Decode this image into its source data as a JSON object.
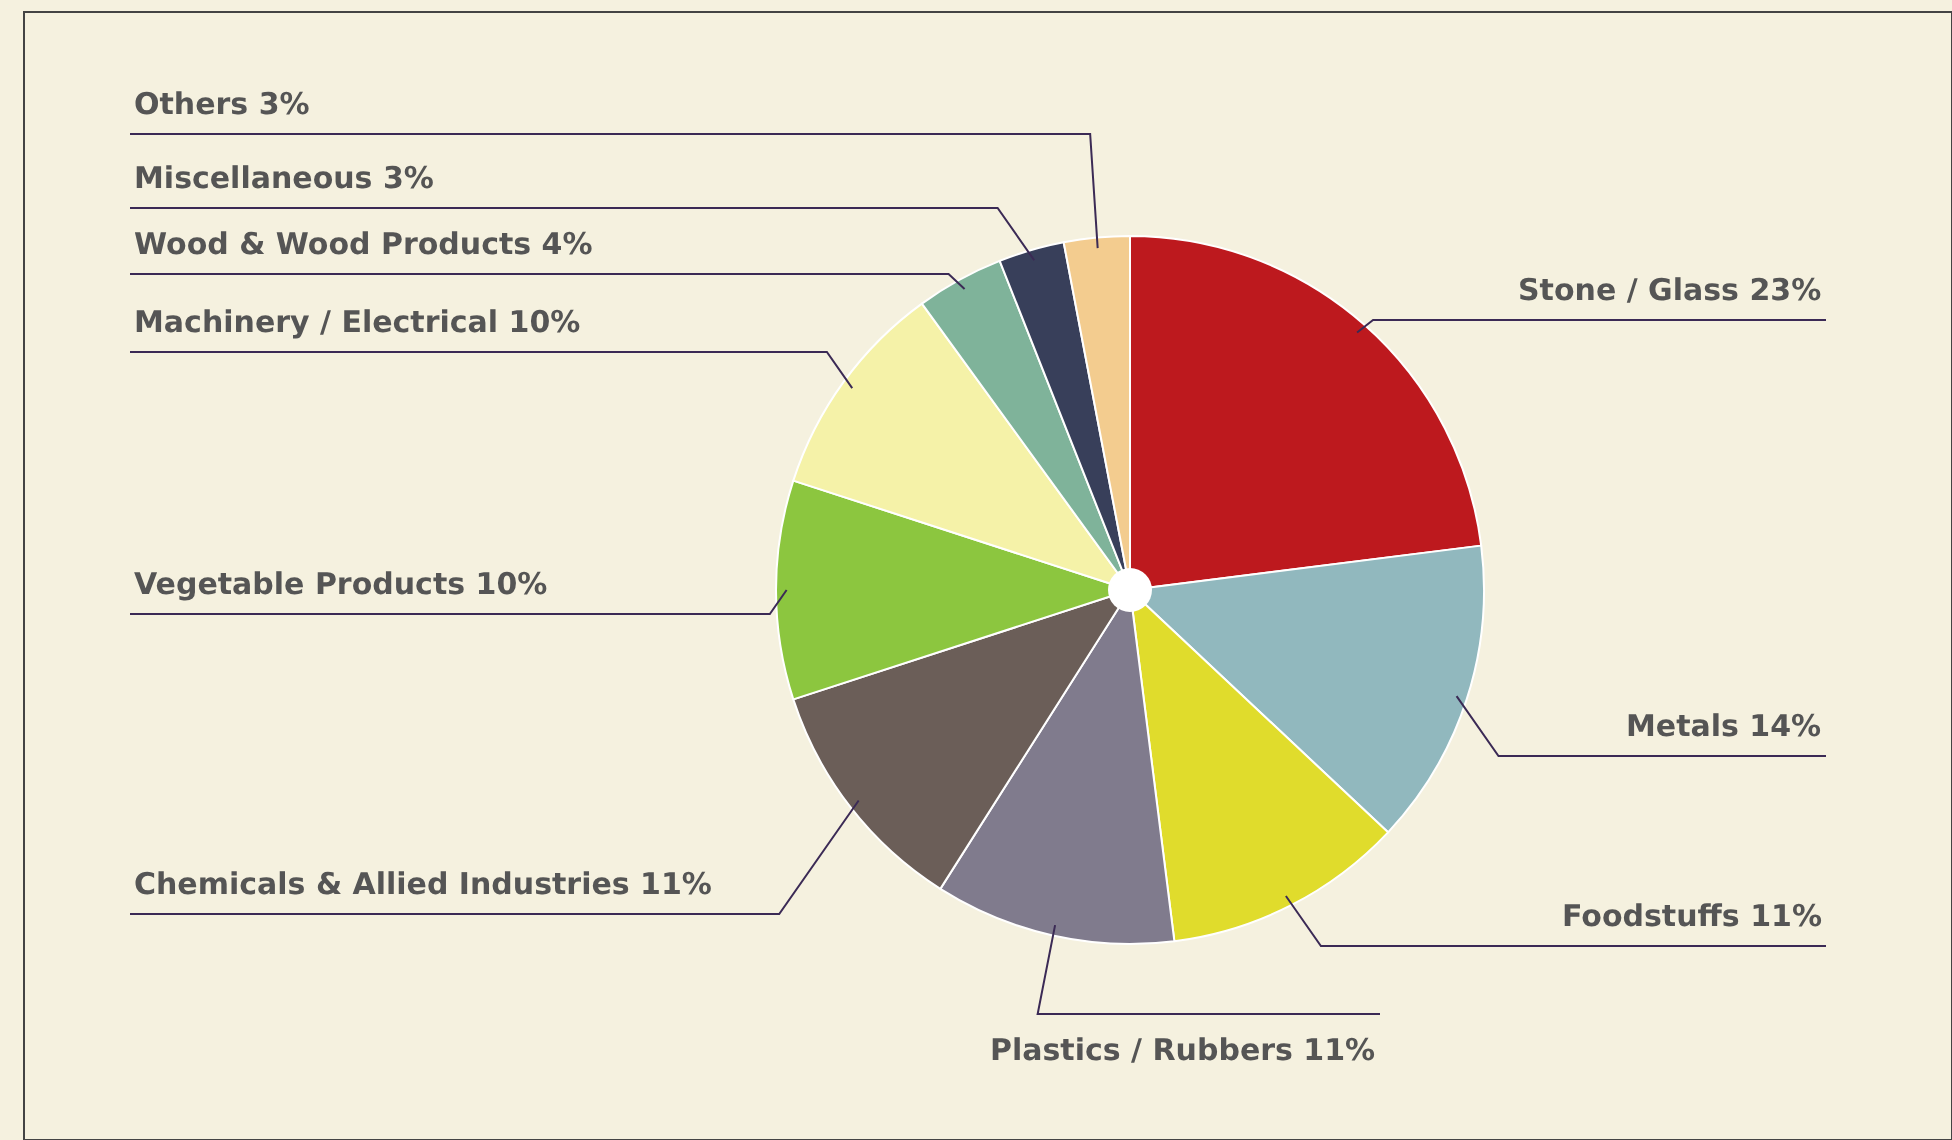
{
  "chart_data": {
    "type": "pie",
    "categories": [
      "Stone / Glass",
      "Metals",
      "Foodstuffs",
      "Plastics / Rubbers",
      "Chemicals & Allied Industries",
      "Vegetable Products",
      "Machinery / Electrical",
      "Wood & Wood Products",
      "Miscellaneous",
      "Others"
    ],
    "values": [
      23,
      14,
      11,
      11,
      11,
      10,
      10,
      4,
      3,
      3
    ],
    "value_labels": [
      "23%",
      "14%",
      "11%",
      "11%",
      "11%",
      "10%",
      "10%",
      "4%",
      "3%",
      "3%"
    ],
    "colors": [
      "#bd191e",
      "#91b8be",
      "#e0dc2c",
      "#807b8d",
      "#6b5e58",
      "#8cc63f",
      "#f5f2a8",
      "#7fb39a",
      "#383f5a",
      "#f3cc8f"
    ],
    "legend": false
  }
}
